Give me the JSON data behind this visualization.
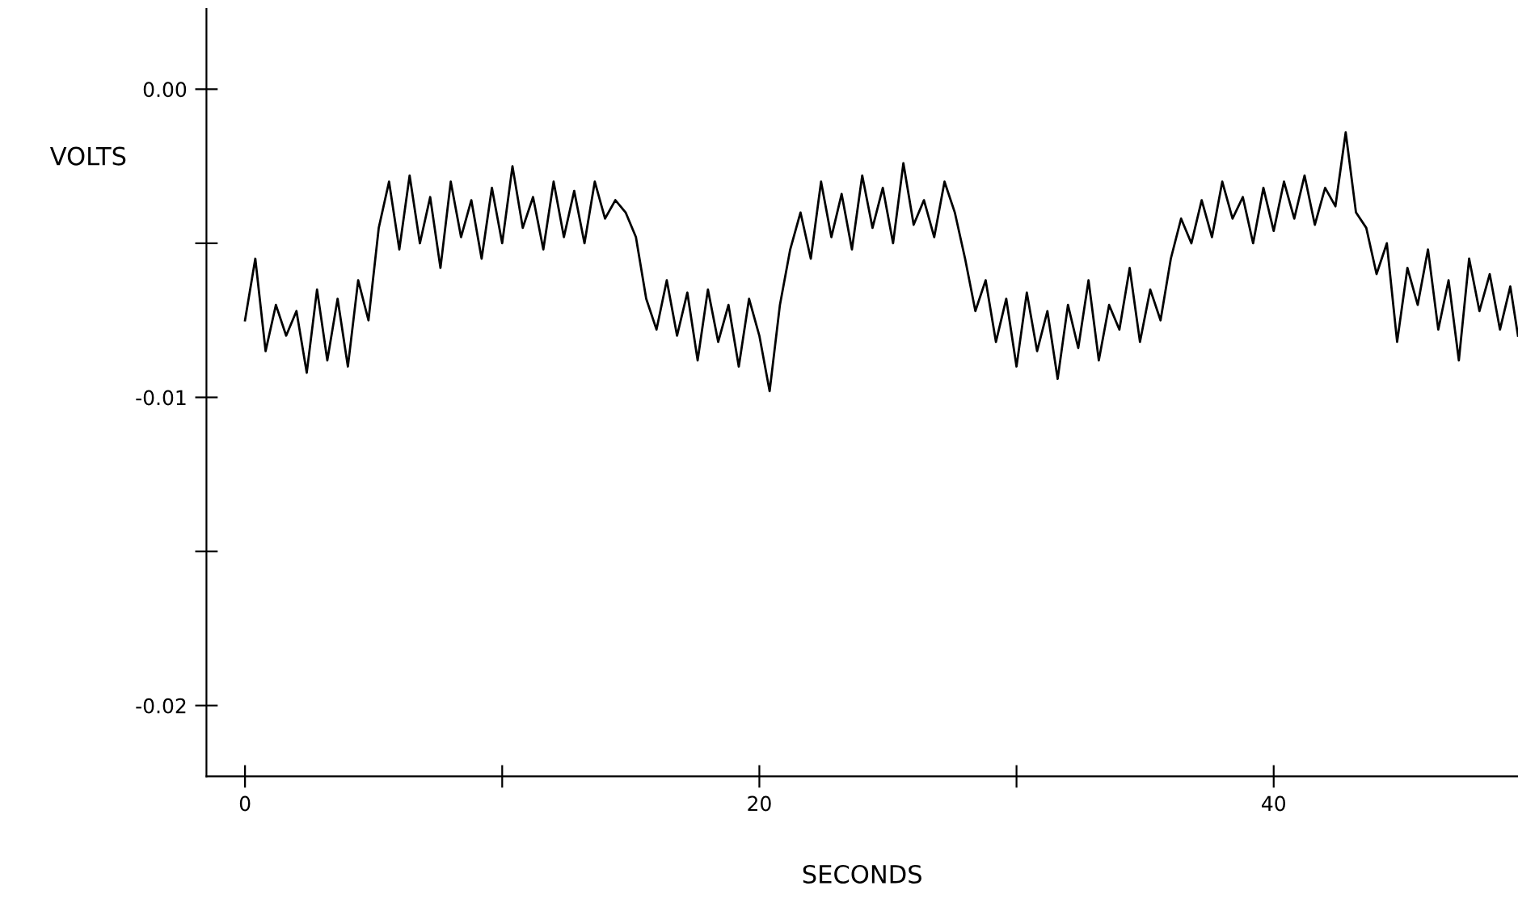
{
  "chart_data": {
    "type": "line",
    "xlabel": "SECONDS",
    "ylabel": "VOLTS",
    "x": [
      0,
      0.4,
      0.8,
      1.2,
      1.6,
      2.0,
      2.4,
      2.8,
      3.2,
      3.6,
      4.0,
      4.4,
      4.8,
      5.2,
      5.6,
      6.0,
      6.4,
      6.8,
      7.2,
      7.6,
      8.0,
      8.4,
      8.8,
      9.2,
      9.6,
      10.0,
      10.4,
      10.8,
      11.2,
      11.6,
      12.0,
      12.4,
      12.8,
      13.2,
      13.6,
      14.0,
      14.4,
      14.8,
      15.2,
      15.6,
      16.0,
      16.4,
      16.8,
      17.2,
      17.6,
      18.0,
      18.4,
      18.8,
      19.2,
      19.6,
      20.0,
      20.4,
      20.8,
      21.2,
      21.6,
      22.0,
      22.4,
      22.8,
      23.2,
      23.6,
      24.0,
      24.4,
      24.8,
      25.2,
      25.6,
      26.0,
      26.4,
      26.8,
      27.2,
      27.6,
      28.0,
      28.4,
      28.8,
      29.2,
      29.6,
      30.0,
      30.4,
      30.8,
      31.2,
      31.6,
      32.0,
      32.4,
      32.8,
      33.2,
      33.6,
      34.0,
      34.4,
      34.8,
      35.2,
      35.6,
      36.0,
      36.4,
      36.8,
      37.2,
      37.6,
      38.0,
      38.4,
      38.8,
      39.2,
      39.6,
      40.0,
      40.4,
      40.8,
      41.2,
      41.6,
      42.0,
      42.4,
      42.8,
      43.2,
      43.6,
      44.0,
      44.4,
      44.8,
      45.2,
      45.6,
      46.0,
      46.4,
      46.8,
      47.2,
      47.6,
      48.0,
      48.4,
      48.8,
      49.2,
      49.5
    ],
    "series": [
      {
        "color": "#000000",
        "values": [
          -0.0075,
          -0.0055,
          -0.0085,
          -0.007,
          -0.008,
          -0.0072,
          -0.0092,
          -0.0065,
          -0.0088,
          -0.0068,
          -0.009,
          -0.0062,
          -0.0075,
          -0.0045,
          -0.003,
          -0.0052,
          -0.0028,
          -0.005,
          -0.0035,
          -0.0058,
          -0.003,
          -0.0048,
          -0.0036,
          -0.0055,
          -0.0032,
          -0.005,
          -0.0025,
          -0.0045,
          -0.0035,
          -0.0052,
          -0.003,
          -0.0048,
          -0.0033,
          -0.005,
          -0.003,
          -0.0042,
          -0.0036,
          -0.004,
          -0.0048,
          -0.0068,
          -0.0078,
          -0.0062,
          -0.008,
          -0.0066,
          -0.0088,
          -0.0065,
          -0.0082,
          -0.007,
          -0.009,
          -0.0068,
          -0.008,
          -0.0098,
          -0.007,
          -0.0052,
          -0.004,
          -0.0055,
          -0.003,
          -0.0048,
          -0.0034,
          -0.0052,
          -0.0028,
          -0.0045,
          -0.0032,
          -0.005,
          -0.0024,
          -0.0044,
          -0.0036,
          -0.0048,
          -0.003,
          -0.004,
          -0.0055,
          -0.0072,
          -0.0062,
          -0.0082,
          -0.0068,
          -0.009,
          -0.0066,
          -0.0085,
          -0.0072,
          -0.0094,
          -0.007,
          -0.0084,
          -0.0062,
          -0.0088,
          -0.007,
          -0.0078,
          -0.0058,
          -0.0082,
          -0.0065,
          -0.0075,
          -0.0055,
          -0.0042,
          -0.005,
          -0.0036,
          -0.0048,
          -0.003,
          -0.0042,
          -0.0035,
          -0.005,
          -0.0032,
          -0.0046,
          -0.003,
          -0.0042,
          -0.0028,
          -0.0044,
          -0.0032,
          -0.0038,
          -0.0014,
          -0.004,
          -0.0045,
          -0.006,
          -0.005,
          -0.0082,
          -0.0058,
          -0.007,
          -0.0052,
          -0.0078,
          -0.0062,
          -0.0088,
          -0.0055,
          -0.0072,
          -0.006,
          -0.0078,
          -0.0064,
          -0.008
        ]
      }
    ],
    "xlim": [
      -1.5,
      49.5
    ],
    "ylim": [
      -0.0223,
      0.0026
    ],
    "xticks": [
      0,
      {
        "value": 10,
        "label": null
      },
      20,
      {
        "value": 30,
        "label": null
      },
      40
    ],
    "yticks": [
      {
        "value": 0,
        "label": "0.00"
      },
      {
        "value": -0.005,
        "label": null
      },
      {
        "value": -0.01,
        "label": "-0.01"
      },
      {
        "value": -0.015,
        "label": null
      },
      {
        "value": -0.02,
        "label": "-0.02"
      }
    ],
    "grid": false,
    "legend": false,
    "line_style": "solid",
    "marker": "none"
  }
}
